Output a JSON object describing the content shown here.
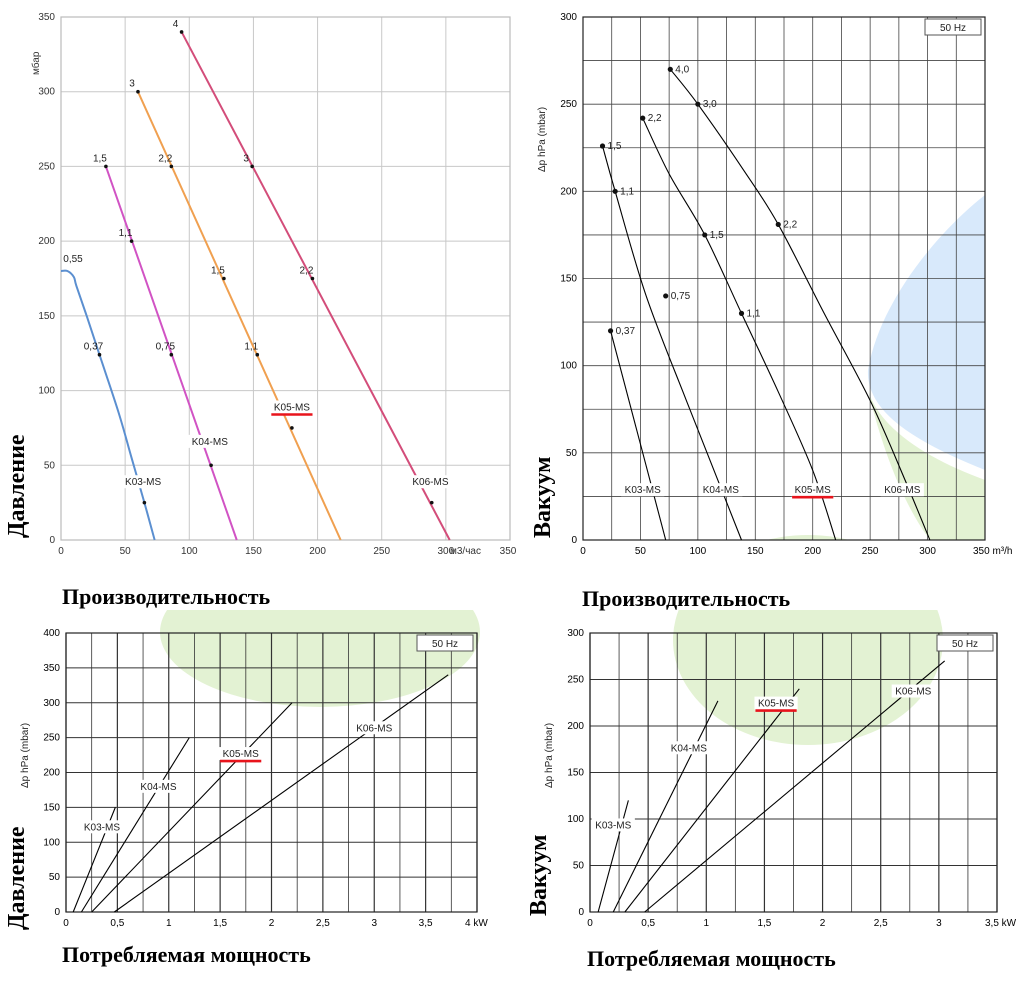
{
  "chart_data": [
    {
      "type": "line",
      "id": "c1",
      "title": "",
      "xlabel": "Производительность",
      "ylabel": "Давление",
      "x_unit": "м3/час",
      "y_unit": "мбар",
      "xlim": [
        0,
        350
      ],
      "ylim": [
        0,
        350
      ],
      "xticks": [
        0,
        50,
        100,
        150,
        200,
        250,
        300,
        350
      ],
      "yticks": [
        0,
        50,
        100,
        150,
        200,
        250,
        300,
        350
      ],
      "highlight": "K05-MS",
      "series": [
        {
          "name": "K03-MS",
          "color": "#5b8fd0",
          "x": [
            0,
            5,
            10,
            12,
            20,
            30,
            45,
            55,
            65,
            73
          ],
          "y": [
            180,
            180,
            176,
            170,
            150,
            124,
            85,
            55,
            25,
            0
          ],
          "points": [
            {
              "x": 30,
              "y": 124,
              "label": "0,37"
            },
            {
              "x": 65,
              "y": 25,
              "label": ""
            }
          ],
          "extra_labels": [
            {
              "x": 0,
              "y": 182,
              "label": "0,55"
            }
          ]
        },
        {
          "name": "K04-MS",
          "color": "#d153c4",
          "x": [
            35,
            137
          ],
          "y": [
            250,
            0
          ],
          "points": [
            {
              "x": 35,
              "y": 250,
              "label": "1,5"
            },
            {
              "x": 55,
              "y": 200,
              "label": "1,1"
            },
            {
              "x": 86,
              "y": 124,
              "label": "0,75"
            },
            {
              "x": 117,
              "y": 50,
              "label": ""
            }
          ]
        },
        {
          "name": "K05-MS",
          "color": "#f0a050",
          "x": [
            60,
            218
          ],
          "y": [
            300,
            0
          ],
          "points": [
            {
              "x": 60,
              "y": 300,
              "label": "3"
            },
            {
              "x": 86,
              "y": 250,
              "label": "2,2"
            },
            {
              "x": 127,
              "y": 175,
              "label": "1,5"
            },
            {
              "x": 153,
              "y": 124,
              "label": "1,1"
            },
            {
              "x": 180,
              "y": 75,
              "label": ""
            }
          ]
        },
        {
          "name": "K06-MS",
          "color": "#d34d7a",
          "x": [
            94,
            303
          ],
          "y": [
            340,
            0
          ],
          "points": [
            {
              "x": 94,
              "y": 340,
              "label": "4"
            },
            {
              "x": 149,
              "y": 250,
              "label": "3"
            },
            {
              "x": 196,
              "y": 175,
              "label": "2,2"
            },
            {
              "x": 289,
              "y": 25,
              "label": ""
            }
          ]
        }
      ],
      "series_labels": [
        {
          "text": "K03-MS",
          "x": 64,
          "y": 38
        },
        {
          "text": "K04-MS",
          "x": 116,
          "y": 65
        },
        {
          "text": "K05-MS",
          "x": 180,
          "y": 88
        },
        {
          "text": "K06-MS",
          "x": 288,
          "y": 38
        }
      ]
    },
    {
      "type": "line",
      "id": "c2",
      "title": "",
      "xlabel": "Производительность",
      "ylabel": "Вакуум",
      "x_unit": "m³/h",
      "y_unit": "Δp hPa (mbar)",
      "freq_label": "50 Hz",
      "xlim": [
        0,
        350
      ],
      "ylim": [
        0,
        300
      ],
      "xticks": [
        0,
        50,
        100,
        150,
        200,
        250,
        300,
        350
      ],
      "yticks": [
        0,
        50,
        100,
        150,
        200,
        250,
        300
      ],
      "highlight": "K05-MS",
      "series": [
        {
          "name": "K03-MS",
          "color": "#000000",
          "x": [
            24,
            72
          ],
          "y": [
            120,
            0
          ],
          "points": [
            {
              "x": 24,
              "y": 120,
              "label": "0,37"
            }
          ]
        },
        {
          "name": "K04-MS",
          "color": "#000000",
          "x": [
            17,
            28,
            55,
            90,
            120,
            138
          ],
          "y": [
            226,
            200,
            140,
            80,
            30,
            0
          ],
          "points": [
            {
              "x": 17,
              "y": 226,
              "label": "1,5"
            },
            {
              "x": 28,
              "y": 200,
              "label": "1,1"
            },
            {
              "x": 72,
              "y": 140,
              "label": "0,75"
            }
          ]
        },
        {
          "name": "K05-MS",
          "color": "#000000",
          "x": [
            52,
            75,
            106,
            138,
            170,
            200,
            220
          ],
          "y": [
            242,
            210,
            175,
            130,
            85,
            40,
            0
          ],
          "points": [
            {
              "x": 52,
              "y": 242,
              "label": "2,2"
            },
            {
              "x": 106,
              "y": 175,
              "label": "1,5"
            },
            {
              "x": 138,
              "y": 130,
              "label": "1,1"
            }
          ]
        },
        {
          "name": "K06-MS",
          "color": "#000000",
          "x": [
            76,
            100,
            140,
            170,
            210,
            250,
            280,
            302
          ],
          "y": [
            270,
            250,
            212,
            181,
            130,
            80,
            35,
            0
          ],
          "points": [
            {
              "x": 76,
              "y": 270,
              "label": "4,0"
            },
            {
              "x": 100,
              "y": 250,
              "label": "3,0"
            },
            {
              "x": 170,
              "y": 181,
              "label": "2,2"
            }
          ]
        }
      ],
      "series_labels": [
        {
          "text": "K03-MS",
          "x": 52,
          "y": 28
        },
        {
          "text": "K04-MS",
          "x": 120,
          "y": 28
        },
        {
          "text": "K05-MS",
          "x": 200,
          "y": 28
        },
        {
          "text": "K06-MS",
          "x": 278,
          "y": 28
        }
      ]
    },
    {
      "type": "line",
      "id": "c3",
      "title": "",
      "xlabel": "Потребляемая мощность",
      "ylabel": "Давление",
      "x_unit": "kW",
      "y_unit": "Δp hPa (mbar)",
      "freq_label": "50 Hz",
      "xlim": [
        0,
        4
      ],
      "ylim": [
        0,
        400
      ],
      "xticks": [
        0,
        0.5,
        1,
        1.5,
        2,
        2.5,
        3,
        3.5,
        4
      ],
      "yticks": [
        0,
        50,
        100,
        150,
        200,
        250,
        300,
        350,
        400
      ],
      "highlight": "K05-MS",
      "series": [
        {
          "name": "K03-MS",
          "color": "#000000",
          "x": [
            0.07,
            0.48
          ],
          "y": [
            0,
            150
          ]
        },
        {
          "name": "K04-MS",
          "color": "#000000",
          "x": [
            0.15,
            1.2
          ],
          "y": [
            0,
            250
          ]
        },
        {
          "name": "K05-MS",
          "color": "#000000",
          "x": [
            0.25,
            2.2
          ],
          "y": [
            0,
            300
          ]
        },
        {
          "name": "K06-MS",
          "color": "#000000",
          "x": [
            0.47,
            3.72
          ],
          "y": [
            0,
            340
          ]
        }
      ],
      "series_labels": [
        {
          "text": "K03-MS",
          "x": 0.35,
          "y": 120
        },
        {
          "text": "K04-MS",
          "x": 0.9,
          "y": 178
        },
        {
          "text": "K05-MS",
          "x": 1.7,
          "y": 225
        },
        {
          "text": "K06-MS",
          "x": 3.0,
          "y": 262
        }
      ]
    },
    {
      "type": "line",
      "id": "c4",
      "title": "",
      "xlabel": "Потребляемая мощность",
      "ylabel": "Вакуум",
      "x_unit": "kW",
      "y_unit": "Δp hPa (mbar)",
      "freq_label": "50 Hz",
      "xlim": [
        0,
        3.5
      ],
      "ylim": [
        0,
        300
      ],
      "xticks": [
        0,
        0.5,
        1,
        1.5,
        2,
        2.5,
        3,
        3.5
      ],
      "yticks": [
        0,
        50,
        100,
        150,
        200,
        250,
        300
      ],
      "highlight": "K05-MS",
      "series": [
        {
          "name": "K03-MS",
          "color": "#000000",
          "x": [
            0.07,
            0.33
          ],
          "y": [
            0,
            120
          ]
        },
        {
          "name": "K04-MS",
          "color": "#000000",
          "x": [
            0.2,
            1.1
          ],
          "y": [
            0,
            227
          ]
        },
        {
          "name": "K05-MS",
          "color": "#000000",
          "x": [
            0.3,
            1.8
          ],
          "y": [
            0,
            240
          ]
        },
        {
          "name": "K06-MS",
          "color": "#000000",
          "x": [
            0.47,
            3.05
          ],
          "y": [
            0,
            270
          ]
        }
      ],
      "series_labels": [
        {
          "text": "K03-MS",
          "x": 0.2,
          "y": 92
        },
        {
          "text": "K04-MS",
          "x": 0.85,
          "y": 175
        },
        {
          "text": "K05-MS",
          "x": 1.6,
          "y": 223
        },
        {
          "text": "K06-MS",
          "x": 2.78,
          "y": 236
        }
      ]
    }
  ]
}
